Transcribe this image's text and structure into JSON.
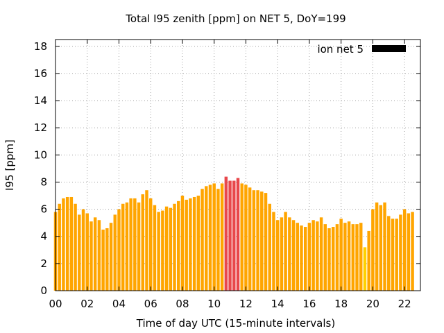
{
  "chart_data": {
    "type": "bar",
    "title": "Total I95 zenith [ppm] on NET 5, DoY=199",
    "xlabel": "Time of day UTC (15-minute intervals)",
    "ylabel": "I95 [ppm]",
    "xlim": [
      0,
      23
    ],
    "ylim": [
      0,
      18.5
    ],
    "x_interval_hours": 0.25,
    "xticks": [
      "00",
      "02",
      "04",
      "06",
      "08",
      "10",
      "12",
      "14",
      "16",
      "18",
      "20",
      "22"
    ],
    "yticks": [
      "0",
      "2",
      "4",
      "6",
      "8",
      "10",
      "12",
      "14",
      "16",
      "18"
    ],
    "grid": true,
    "legend": {
      "label": "ion net 5",
      "position": "top-right",
      "color": "#000000"
    },
    "colors": {
      "normal": "#FFA500",
      "high": "#E8474B",
      "low": "#FFD000"
    },
    "series": [
      {
        "name": "ion net 5",
        "values": [
          5.8,
          6.4,
          6.8,
          6.9,
          6.9,
          6.4,
          5.6,
          6.0,
          5.7,
          5.1,
          5.4,
          5.2,
          4.5,
          4.6,
          5.0,
          5.6,
          6.0,
          6.4,
          6.5,
          6.8,
          6.8,
          6.5,
          7.1,
          7.4,
          6.8,
          6.3,
          5.8,
          5.9,
          6.2,
          6.1,
          6.4,
          6.6,
          7.0,
          6.7,
          6.8,
          6.9,
          7.0,
          7.5,
          7.7,
          7.8,
          7.9,
          7.5,
          7.9,
          8.4,
          8.1,
          8.1,
          8.3,
          7.9,
          7.8,
          7.6,
          7.4,
          7.4,
          7.3,
          7.2,
          6.4,
          5.8,
          5.2,
          5.4,
          5.8,
          5.4,
          5.2,
          5.0,
          4.8,
          4.7,
          5.0,
          5.2,
          5.1,
          5.4,
          4.9,
          4.6,
          4.7,
          4.9,
          5.3,
          5.0,
          5.1,
          4.9,
          4.9,
          5.0,
          3.2,
          4.4,
          6.0,
          6.5,
          6.3,
          6.5,
          5.5,
          5.3,
          5.3,
          5.6,
          6.0,
          5.7,
          5.8
        ],
        "levels": [
          "normal",
          "normal",
          "normal",
          "normal",
          "normal",
          "normal",
          "normal",
          "normal",
          "normal",
          "normal",
          "normal",
          "normal",
          "normal",
          "normal",
          "normal",
          "normal",
          "normal",
          "normal",
          "normal",
          "normal",
          "normal",
          "normal",
          "normal",
          "normal",
          "normal",
          "normal",
          "normal",
          "normal",
          "normal",
          "normal",
          "normal",
          "normal",
          "normal",
          "normal",
          "normal",
          "normal",
          "normal",
          "normal",
          "normal",
          "normal",
          "normal",
          "normal",
          "normal",
          "high",
          "high",
          "high",
          "high",
          "normal",
          "normal",
          "normal",
          "normal",
          "normal",
          "normal",
          "normal",
          "normal",
          "normal",
          "normal",
          "normal",
          "normal",
          "normal",
          "normal",
          "normal",
          "normal",
          "normal",
          "normal",
          "normal",
          "normal",
          "normal",
          "normal",
          "normal",
          "normal",
          "normal",
          "normal",
          "normal",
          "normal",
          "normal",
          "normal",
          "normal",
          "low",
          "normal",
          "normal",
          "normal",
          "normal",
          "normal",
          "normal",
          "normal",
          "normal",
          "normal",
          "normal",
          "normal",
          "normal"
        ]
      }
    ]
  }
}
